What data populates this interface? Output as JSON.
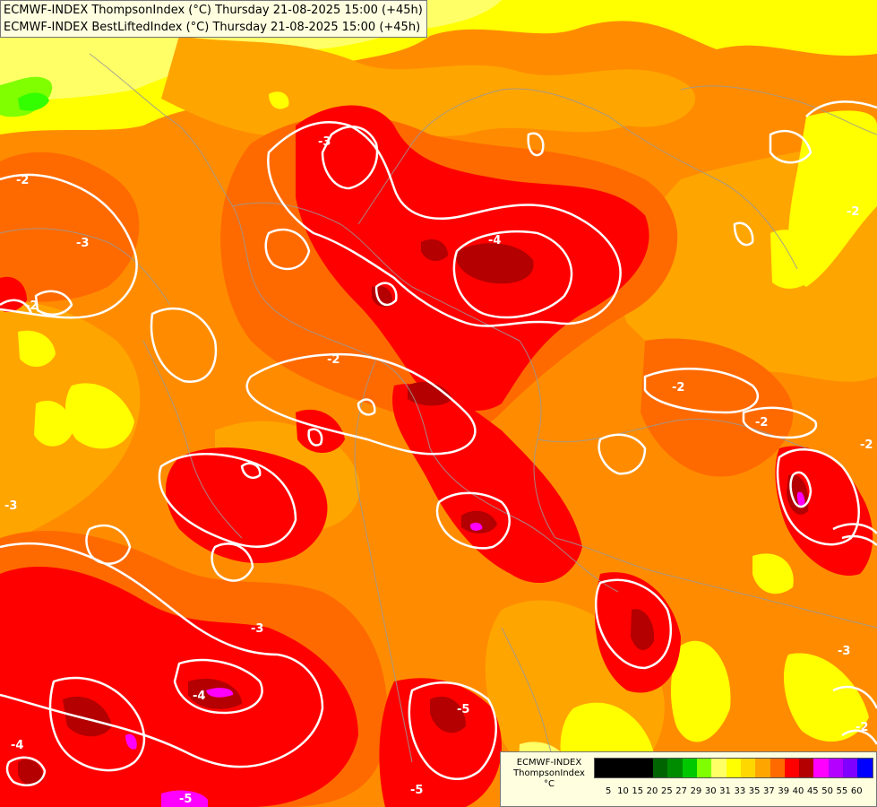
{
  "header": {
    "line1": "ECMWF-INDEX ThompsonIndex (°C) Thursday 21-08-2025 15:00 (+45h)",
    "line2": "ECMWF-INDEX BestLiftedIndex (°C) Thursday 21-08-2025 15:00 (+45h)"
  },
  "legend": {
    "model": "ECMWF-INDEX",
    "param": "ThompsonIndex",
    "unit": "°C",
    "ticks": [
      "5",
      "10",
      "15",
      "20",
      "25",
      "27",
      "29",
      "30",
      "31",
      "33",
      "35",
      "37",
      "39",
      "40",
      "45",
      "50",
      "55",
      "60"
    ],
    "colors": [
      "#000000",
      "#000000",
      "#000000",
      "#000000",
      "#006400",
      "#008c00",
      "#00c800",
      "#7fff00",
      "#ffff66",
      "#ffff00",
      "#ffd700",
      "#ffa500",
      "#ff6a00",
      "#ff0000",
      "#b40000",
      "#ff00ff",
      "#b400ff",
      "#7f00ff",
      "#0000ff"
    ]
  },
  "contour_labels": [
    "-2",
    "-3",
    "-4",
    "-5"
  ],
  "colors": {
    "base": "#ff8c00",
    "light_orange": "#ffa500",
    "yellow": "#ffff00",
    "pale_yellow": "#ffff66",
    "green": "#7fff00",
    "bright_green": "#00ff00",
    "red": "#ff0000",
    "dark_red": "#b40000",
    "magenta": "#ff00ff"
  }
}
